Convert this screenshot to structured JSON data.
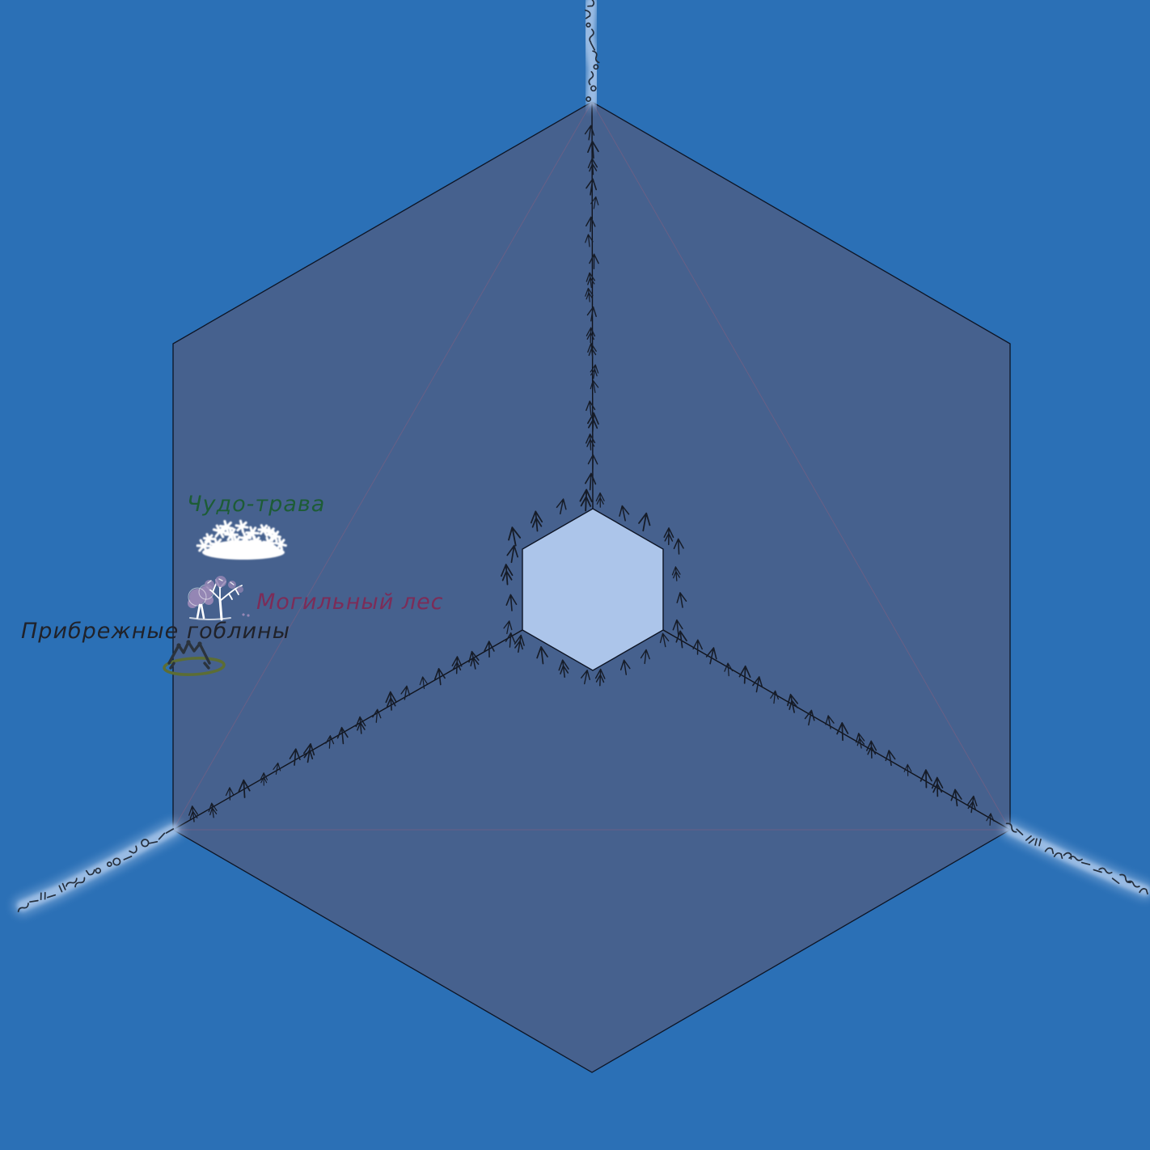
{
  "map_type": "fantasy-hex-territory-map",
  "theme": {
    "bg": "#2b70b6",
    "face": "#46618e",
    "center-hex": "#acc5ea",
    "outline": "#0d1424",
    "divider": "#10131c",
    "faint": "#8a5f7f",
    "tree-ink": "#161c28",
    "river-glow": "#a9c6ea",
    "river-ink": "#242e3c",
    "grass": "#ffffff",
    "trunk": "#ffffff",
    "foliage": "#9486b4",
    "mountain": "#2b333d",
    "olive": "#5c6d35"
  },
  "territories": [
    {
      "id": "chudo-trava",
      "label": "Чудо-трава",
      "label_color": "#1d5c36",
      "icon": "grass-icon"
    },
    {
      "id": "mogilny-les",
      "label": "Могильный лес",
      "label_color": "#7c2c58",
      "icon": "dead-trees-icon"
    },
    {
      "id": "pribrezhnye-gobliny",
      "label": "Прибрежные гоблины",
      "label_color": "#20222a",
      "icon": "mountains-icon"
    }
  ],
  "features": {
    "center_hex": "lake-hexagon",
    "rivers": [
      "river-north",
      "river-southwest",
      "river-southeast"
    ],
    "forest_borders": [
      "north-border",
      "southwest-border",
      "southeast-border"
    ]
  }
}
